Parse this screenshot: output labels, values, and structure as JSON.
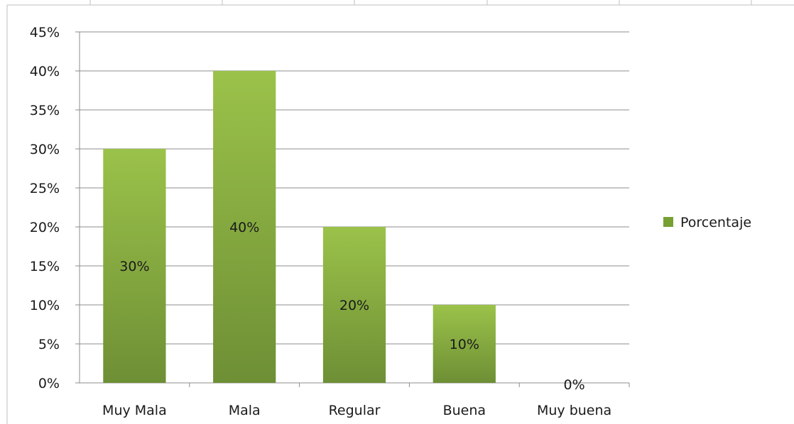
{
  "chart_data": {
    "type": "bar",
    "categories": [
      "Muy Mala",
      "Mala",
      "Regular",
      "Buena",
      "Muy buena"
    ],
    "series": [
      {
        "name": "Porcentaje",
        "values": [
          30,
          40,
          20,
          10,
          0
        ],
        "data_labels": [
          "30%",
          "40%",
          "20%",
          "10%",
          "0%"
        ]
      }
    ],
    "ylim": [
      0,
      45
    ],
    "y_ticks": [
      0,
      5,
      10,
      15,
      20,
      25,
      30,
      35,
      40,
      45
    ],
    "y_tick_labels": [
      "0%",
      "5%",
      "10%",
      "15%",
      "20%",
      "25%",
      "30%",
      "35%",
      "40%",
      "45%"
    ],
    "grid": true,
    "legend_position": "right",
    "colors": {
      "bar_top": "#9bc24a",
      "bar_bottom": "#6e8f35",
      "grid": "#8c8c8c",
      "axis": "#8c8c8c",
      "legend_swatch": "#77a033"
    }
  }
}
